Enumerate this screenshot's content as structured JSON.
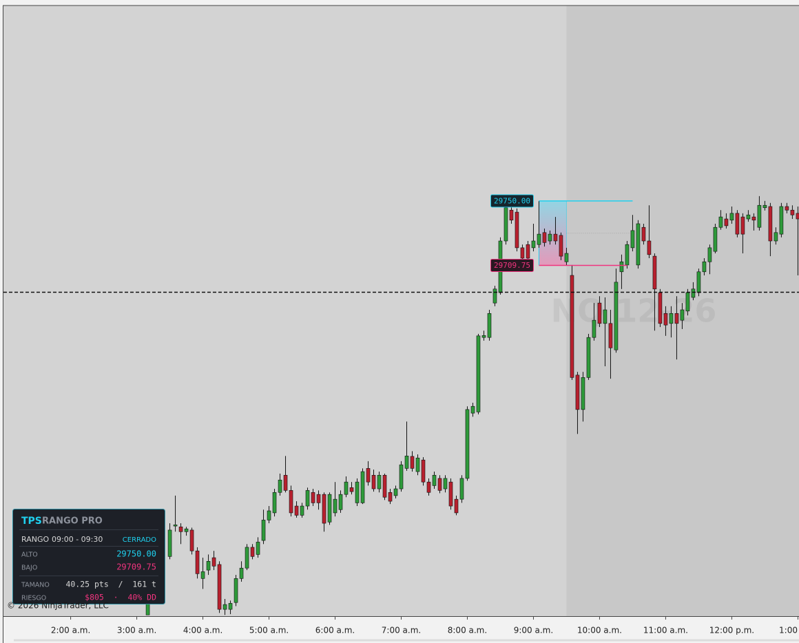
{
  "chart_data": {
    "type": "candlestick",
    "xlim": [
      59,
      781
    ],
    "ylim": [
      29490.75,
      29872
    ],
    "xticks": [
      {
        "value": 120,
        "label": "2:00 a.m."
      },
      {
        "value": 180,
        "label": "3:00 a.m."
      },
      {
        "value": 240,
        "label": "4:00 a.m."
      },
      {
        "value": 300,
        "label": "5:00 a.m."
      },
      {
        "value": 360,
        "label": "6:00 a.m."
      },
      {
        "value": 420,
        "label": "7:00 a.m."
      },
      {
        "value": 480,
        "label": "8:00 a.m."
      },
      {
        "value": 540,
        "label": "9:00 a.m."
      },
      {
        "value": 600,
        "label": "10:00 a.m."
      },
      {
        "value": 660,
        "label": "11:00 a.m."
      },
      {
        "value": 720,
        "label": "12:00 p.m."
      },
      {
        "value": 780,
        "label": "1:00"
      }
    ],
    "up_color": "#2e9a3a",
    "down_color": "#b8202e",
    "session_shade_start": 570,
    "hline": 29693,
    "watermark": "NQ 12-26",
    "copyright": "© 2026 NinjaTrader, LLC",
    "range": {
      "start": 545,
      "end": 570,
      "high_line_end": 630,
      "low_line_end": 625,
      "high": {
        "value": 29750,
        "label": "29750.00"
      },
      "low": {
        "value": 29709.75,
        "label": "29709.75"
      },
      "high_color": "#1fd0ee",
      "low_color": "#f0347e"
    },
    "x": [
      190,
      210,
      215,
      220,
      225,
      230,
      235,
      240,
      245,
      250,
      255,
      260,
      265,
      270,
      275,
      280,
      285,
      290,
      295,
      300,
      305,
      310,
      315,
      320,
      325,
      330,
      335,
      340,
      345,
      350,
      355,
      360,
      365,
      370,
      375,
      380,
      385,
      390,
      395,
      400,
      405,
      410,
      415,
      420,
      425,
      430,
      435,
      440,
      445,
      450,
      455,
      460,
      465,
      470,
      475,
      480,
      485,
      490,
      495,
      500,
      505,
      510,
      515,
      520,
      525,
      530,
      535,
      540,
      545,
      550,
      555,
      560,
      565,
      570,
      575,
      580,
      585,
      590,
      595,
      600,
      605,
      610,
      615,
      620,
      625,
      630,
      635,
      640,
      645,
      650,
      655,
      660,
      665,
      670,
      675,
      680,
      685,
      690,
      695,
      700,
      705,
      710,
      715,
      720,
      725,
      730,
      735,
      740,
      745,
      750,
      755,
      760,
      765,
      770,
      775,
      780
    ],
    "open": [
      29491.5,
      29528,
      29547,
      29546.5,
      29543.5,
      29544.5,
      29531.5,
      29514.25,
      29519.5,
      29527.25,
      29523,
      29495,
      29495,
      29499.25,
      29514.25,
      29520.75,
      29533.75,
      29529.25,
      29538,
      29550.75,
      29555.25,
      29568,
      29578.75,
      29569.25,
      29559.5,
      29553.75,
      29559.5,
      29568,
      29566.75,
      29566.75,
      29549.5,
      29555.25,
      29557.25,
      29566.75,
      29571,
      29561.5,
      29561.5,
      29583,
      29578.75,
      29570.25,
      29578.75,
      29568,
      29566,
      29570.25,
      29583,
      29590.5,
      29581,
      29588.25,
      29574.5,
      29572.25,
      29576.75,
      29570.25,
      29574.5,
      29563.75,
      29563.75,
      29576.75,
      29617.5,
      29618.25,
      29664.75,
      29664.75,
      29686.25,
      29692.75,
      29725,
      29744.25,
      29743,
      29720.75,
      29722.75,
      29720.75,
      29722.75,
      29730.25,
      29725,
      29729.25,
      29728.5,
      29712,
      29703.5,
      29641.25,
      29619.75,
      29639.75,
      29664.75,
      29686.25,
      29673.5,
      29673.5,
      29657,
      29705.75,
      29710,
      29720.75,
      29710,
      29733.5,
      29725,
      29715.5,
      29692.75,
      29679.75,
      29673.5,
      29679.75,
      29675.5,
      29681.25,
      29689.75,
      29692.75,
      29705.75,
      29712,
      29718.5,
      29733.5,
      29738.75,
      29738,
      29742.25,
      29740,
      29738.75,
      29740,
      29733.5,
      29745.75,
      29746.5,
      29725,
      29729.25,
      29746.5,
      29744.25,
      29742.25
    ],
    "high": [
      29505.75,
      29548.75,
      29566,
      29548.75,
      29546.5,
      29546,
      29533.75,
      29527.25,
      29529.25,
      29531.5,
      29525,
      29501.5,
      29500.5,
      29516.5,
      29525,
      29535.75,
      29535.75,
      29540,
      29557.25,
      29559.5,
      29570.25,
      29579.75,
      29590.75,
      29572.25,
      29562.5,
      29561.5,
      29571,
      29570.25,
      29569.25,
      29568,
      29568,
      29574.5,
      29569.25,
      29578,
      29574.5,
      29576.75,
      29583,
      29587.5,
      29582.25,
      29581,
      29579.75,
      29570.25,
      29572.25,
      29587.5,
      29612.25,
      29593.75,
      29591.75,
      29590,
      29576.75,
      29581,
      29578.75,
      29578.75,
      29576.75,
      29566,
      29578.75,
      29621.75,
      29624,
      29667,
      29669,
      29682,
      29697,
      29727.25,
      29748.75,
      29747.25,
      29745.25,
      29722.75,
      29725,
      29735.75,
      29750,
      29732.75,
      29731.5,
      29740,
      29730.25,
      29720.75,
      29710,
      29643.25,
      29643.25,
      29667,
      29686.25,
      29690.5,
      29689.75,
      29682,
      29707.75,
      29716.5,
      29725,
      29741.25,
      29738,
      29735.75,
      29747.25,
      29717.25,
      29695,
      29684.25,
      29684.25,
      29690.5,
      29686.25,
      29695,
      29699.25,
      29707.75,
      29714.25,
      29722.75,
      29735.75,
      29744.25,
      29742.25,
      29746.5,
      29744.25,
      29742.25,
      29744.25,
      29742.25,
      29753,
      29750,
      29748.75,
      29733.5,
      29748.75,
      29748.75,
      29747.25,
      29746.5
    ],
    "low": [
      29491.5,
      29526.25,
      29543.5,
      29535.75,
      29541,
      29529.25,
      29514.25,
      29507.75,
      29516.5,
      29519.5,
      29492.75,
      29491.5,
      29492,
      29497,
      29512.25,
      29519.5,
      29526.25,
      29527.25,
      29535.75,
      29548.75,
      29553,
      29566,
      29568,
      29553,
      29552.25,
      29552.25,
      29557.25,
      29559.5,
      29557.25,
      29543.5,
      29547.75,
      29553,
      29555.25,
      29565,
      29566.75,
      29559.5,
      29560.75,
      29572.25,
      29568.5,
      29568,
      29563.25,
      29560.75,
      29564.25,
      29568.5,
      29581.5,
      29581,
      29578.75,
      29572.25,
      29566,
      29570.25,
      29567.5,
      29568,
      29557.25,
      29553.75,
      29561.5,
      29575.25,
      29615.25,
      29616.75,
      29662.75,
      29662.75,
      29684.25,
      29691.5,
      29722.75,
      29735.75,
      29718.5,
      29713,
      29712,
      29718.5,
      29720.75,
      29721.5,
      29722.75,
      29722.75,
      29713,
      29709.75,
      29638.25,
      29604.5,
      29612.25,
      29638.25,
      29662.75,
      29671.25,
      29646.75,
      29639,
      29655.25,
      29695,
      29707.75,
      29718.5,
      29707.75,
      29722.75,
      29714.25,
      29669,
      29671.25,
      29665.75,
      29664.75,
      29651,
      29670,
      29678.5,
      29688,
      29690.5,
      29703.5,
      29704.25,
      29717.25,
      29732,
      29732.75,
      29735.75,
      29727.25,
      29717.25,
      29737,
      29731.5,
      29731.5,
      29744,
      29715.5,
      29722.75,
      29727.25,
      29742.25,
      29738.75,
      29703.5
    ],
    "close": [
      29501.5,
      29544.5,
      29547.75,
      29543.5,
      29545.25,
      29531.5,
      29517.25,
      29518.5,
      29525,
      29522,
      29495,
      29498,
      29498.75,
      29514.25,
      29520.75,
      29533.75,
      29528,
      29537,
      29550.75,
      29556.5,
      29568,
      29575.75,
      29569.25,
      29555.25,
      29553.75,
      29559.5,
      29569.25,
      29561.5,
      29561.5,
      29548.75,
      29566.75,
      29563.75,
      29566.75,
      29574.5,
      29568.5,
      29574.5,
      29581,
      29574.5,
      29570.25,
      29578.75,
      29565,
      29562.5,
      29570.25,
      29585.25,
      29590.75,
      29583,
      29589.5,
      29574.5,
      29568,
      29578.75,
      29569.25,
      29576.75,
      29559.5,
      29555.25,
      29576.75,
      29619.75,
      29621.75,
      29665.75,
      29666,
      29679.75,
      29695,
      29725,
      29745.75,
      29738,
      29720.75,
      29714.25,
      29714.25,
      29725,
      29729.25,
      29724,
      29729.25,
      29725,
      29715.5,
      29717.25,
      29639.75,
      29619.75,
      29639.75,
      29664.75,
      29675.5,
      29673.5,
      29682,
      29658.25,
      29699.25,
      29712,
      29722.75,
      29731.5,
      29735.75,
      29725,
      29716.5,
      29695,
      29673.5,
      29672.5,
      29679.75,
      29673.5,
      29682,
      29692.75,
      29695,
      29705.75,
      29712,
      29720.75,
      29733.5,
      29740,
      29734.5,
      29742.25,
      29729.25,
      29729.25,
      29741.25,
      29738,
      29747.25,
      29747.25,
      29725,
      29730.25,
      29746.5,
      29744.25,
      29741.25,
      29738.75
    ],
    "panel": {
      "brand": "TPS",
      "title": "RANGO PRO",
      "range_label": "RANGO",
      "range_time": "09:00 - 09:30",
      "status": "CERRADO",
      "high_label": "ALTO",
      "low_label": "BAJO",
      "size_label": "TAMANO",
      "size": "40.25 pts  /  161 t",
      "risk_label": "RIESGO",
      "risk": "$805  ·  40% DD"
    }
  }
}
